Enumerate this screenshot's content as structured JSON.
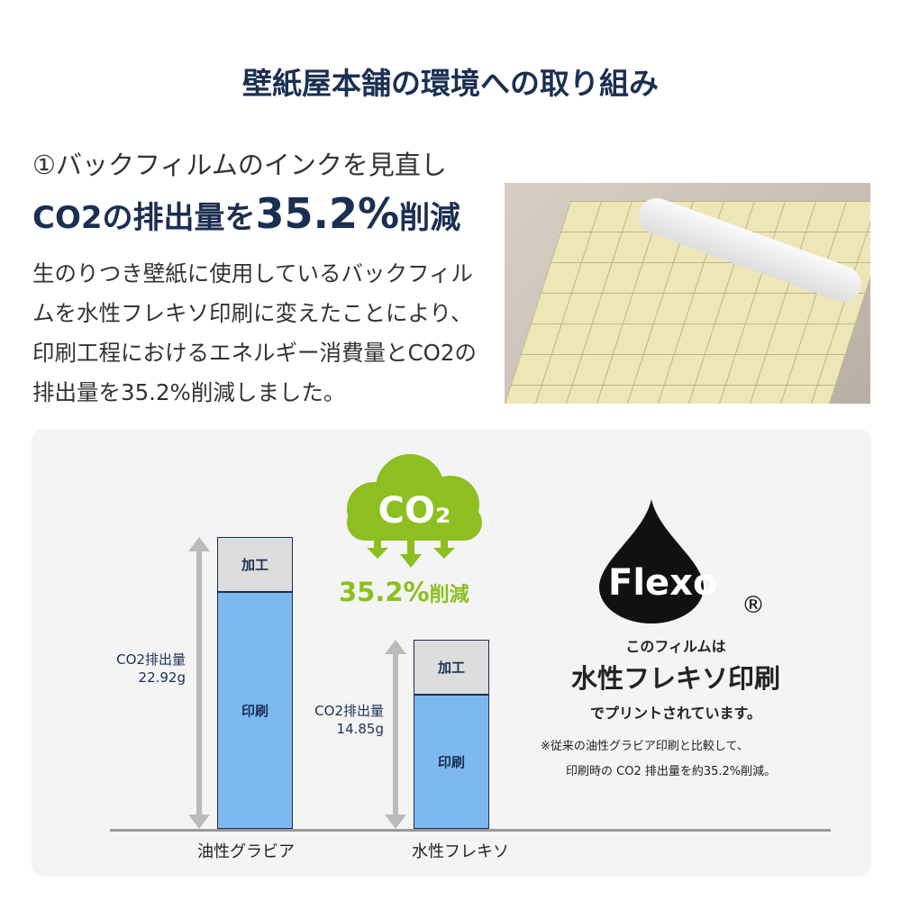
{
  "title": "壁紙屋本舗の環境への取り組み",
  "section": {
    "subtitle": "①バックフィルムのインクを見直し",
    "headline_pre": "CO2の排出量を",
    "headline_big": "35.2%",
    "headline_post": "削減",
    "description": "生のりつき壁紙に使用しているバックフィルムを水性フレキソ印刷に変えたことにより、印刷工程におけるエネルギー消費量とCO2の排出量を35.2%削減しました。"
  },
  "cloud": {
    "label": "CO₂",
    "reduction": "35.2%",
    "reduction_suffix": "削減"
  },
  "flexo": {
    "logo": "Flexo",
    "registered": "®",
    "line1": "このフィルムは",
    "line2": "水性フレキソ印刷",
    "line3": "でプリントされています。",
    "note1": "※従来の油性グラビア印刷と比較して、",
    "note2": "印刷時の CO2 排出量を約35.2%削減。"
  },
  "colors": {
    "navy": "#1b2f52",
    "green": "#8cbf1f",
    "print": "#7db8f0",
    "process": "#dddddd"
  },
  "chart_data": {
    "type": "bar",
    "stacked": true,
    "categories": [
      "油性グラビア",
      "水性フレキソ"
    ],
    "series": [
      {
        "name": "印刷",
        "values": [
          18.62,
          10.55
        ]
      },
      {
        "name": "加工",
        "values": [
          4.3,
          4.3
        ]
      }
    ],
    "totals": [
      22.92,
      14.85
    ],
    "total_labels": [
      [
        "CO2排出量",
        "22.92g"
      ],
      [
        "CO2排出量",
        "14.85g"
      ]
    ],
    "ylim": [
      0,
      22.92
    ],
    "grid": false
  }
}
